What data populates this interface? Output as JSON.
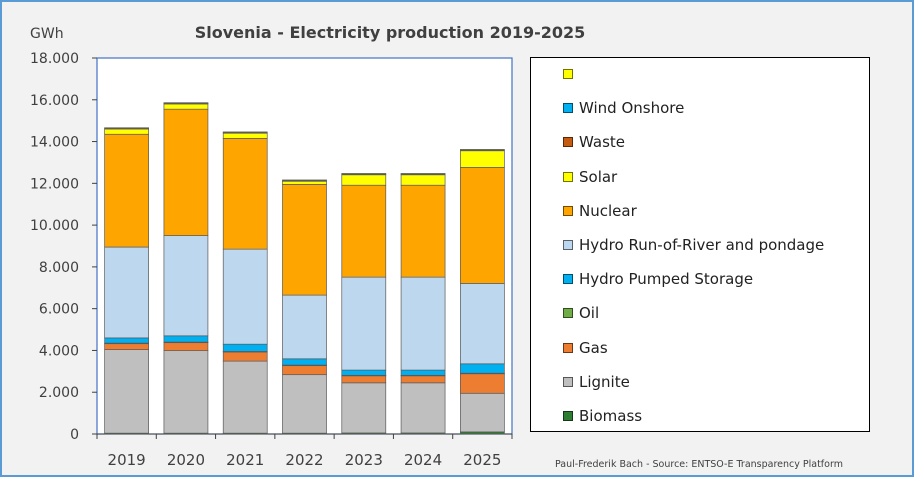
{
  "chart_data": {
    "type": "bar",
    "stacked": true,
    "title": "Slovenia - Electricity production 2019-2025",
    "ylabel": "GWh",
    "xlabel": "",
    "ylim": [
      0,
      18000
    ],
    "yticks": [
      0,
      2000,
      4000,
      6000,
      8000,
      10000,
      12000,
      14000,
      16000,
      18000
    ],
    "ytick_labels": [
      "0",
      "2.000",
      "4.000",
      "6.000",
      "8.000",
      "10.000",
      "12.000",
      "14.000",
      "16.000",
      "18.000"
    ],
    "categories": [
      "2019",
      "2020",
      "2021",
      "2022",
      "2023",
      "2024",
      "2025"
    ],
    "legend_position": "right",
    "grid": false,
    "series": [
      {
        "name": "Biomass",
        "color": "#2e7d32",
        "values": [
          40,
          40,
          40,
          40,
          50,
          50,
          100
        ]
      },
      {
        "name": "Lignite",
        "color": "#bfbfbf",
        "values": [
          4000,
          3950,
          3450,
          2800,
          2400,
          2400,
          1850
        ]
      },
      {
        "name": "Gas",
        "color": "#ed7d31",
        "values": [
          300,
          400,
          450,
          450,
          350,
          350,
          950
        ]
      },
      {
        "name": "Oil",
        "color": "#70ad47",
        "values": [
          10,
          10,
          10,
          10,
          10,
          10,
          10
        ]
      },
      {
        "name": "Hydro Pumped Storage",
        "color": "#00b0f0",
        "values": [
          250,
          300,
          350,
          300,
          250,
          250,
          450
        ]
      },
      {
        "name": "Hydro Run-of-River and pondage",
        "color": "#bdd7ee",
        "values": [
          4350,
          4800,
          4550,
          3050,
          4450,
          4450,
          3850
        ]
      },
      {
        "name": "Nuclear",
        "color": "#ffa500",
        "values": [
          5400,
          6050,
          5300,
          5300,
          4400,
          4400,
          5550
        ]
      },
      {
        "name": "Solar",
        "color": "#ffff00",
        "values": [
          250,
          250,
          250,
          150,
          500,
          500,
          800
        ]
      },
      {
        "name": "Waste",
        "color": "#c55a11",
        "values": [
          50,
          50,
          50,
          50,
          50,
          50,
          50
        ]
      },
      {
        "name": "Wind Onshore",
        "color": "#00b0f0",
        "values": [
          10,
          10,
          10,
          10,
          10,
          10,
          10
        ]
      },
      {
        "name": "",
        "color": "#ffff00",
        "values": [
          0,
          0,
          0,
          0,
          0,
          0,
          0
        ]
      }
    ]
  },
  "source": "Paul-Frederik Bach - Source: ENTSO-E Transparency Platform"
}
